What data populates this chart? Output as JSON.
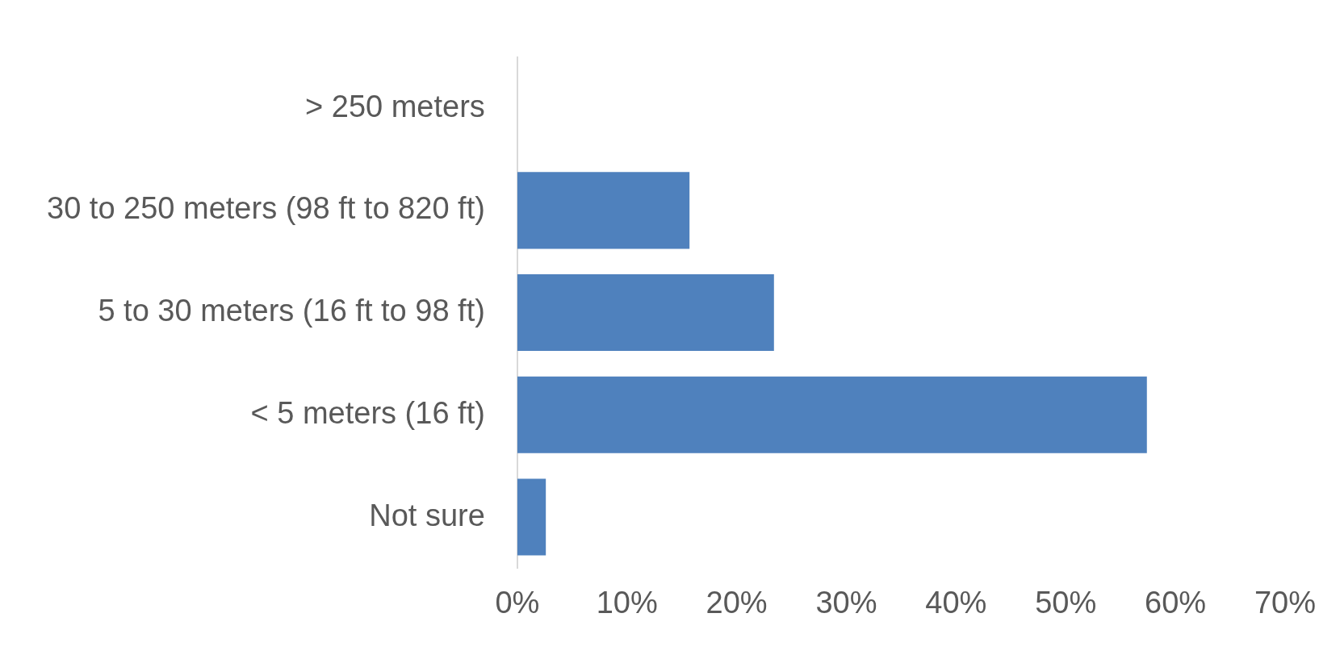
{
  "chart_data": {
    "type": "bar",
    "orientation": "horizontal",
    "categories": [
      "> 250 meters",
      "30 to 250 meters (98 ft to 820 ft)",
      "5 to 30 meters (16 ft to 98 ft)",
      "< 5 meters (16 ft)",
      "Not sure"
    ],
    "values": [
      0,
      15.7,
      23.4,
      57.4,
      2.6
    ],
    "color": "#4f81bd",
    "xlim": [
      0,
      70
    ],
    "xticks": [
      {
        "value": 0,
        "label": "0%"
      },
      {
        "value": 10,
        "label": "10%"
      },
      {
        "value": 20,
        "label": "20%"
      },
      {
        "value": 30,
        "label": "30%"
      },
      {
        "value": 40,
        "label": "40%"
      },
      {
        "value": 50,
        "label": "50%"
      },
      {
        "value": 60,
        "label": "60%"
      },
      {
        "value": 70,
        "label": "70%"
      }
    ],
    "grid": false,
    "legend": false
  }
}
